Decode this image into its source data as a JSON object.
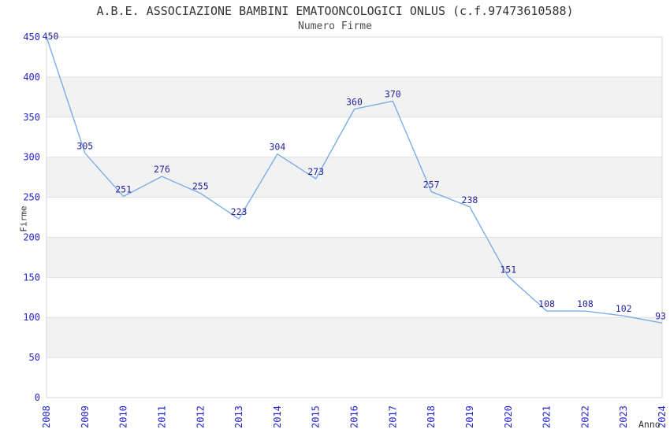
{
  "chart_data": {
    "type": "line",
    "title": "A.B.E. ASSOCIAZIONE BAMBINI EMATOONCOLOGICI ONLUS (c.f.97473610588)",
    "subtitle": "Numero Firme",
    "xlabel": "Anno",
    "ylabel": "Firme",
    "x": [
      "2008",
      "2009",
      "2010",
      "2011",
      "2012",
      "2013",
      "2014",
      "2015",
      "2016",
      "2017",
      "2018",
      "2019",
      "2020",
      "2021",
      "2022",
      "2023",
      "2024"
    ],
    "values": [
      450,
      305,
      251,
      276,
      255,
      223,
      304,
      273,
      360,
      370,
      257,
      238,
      151,
      108,
      108,
      102,
      93
    ],
    "ylim": [
      0,
      450
    ],
    "ytick_step": 50,
    "yticks": [
      0,
      50,
      100,
      150,
      200,
      250,
      300,
      350,
      400,
      450
    ],
    "grid": true,
    "legend_position": "none",
    "data_labels_shown": true,
    "colors": {
      "line": "#7aade8",
      "data_label": "#22229a",
      "tick_label": "#2424cc",
      "band": "#f2f2f2",
      "gridline": "#e0e0e0",
      "plot_border": "#d6d6d6",
      "title_text": "#333333",
      "axis_label": "#333333",
      "background": "#ffffff"
    }
  }
}
